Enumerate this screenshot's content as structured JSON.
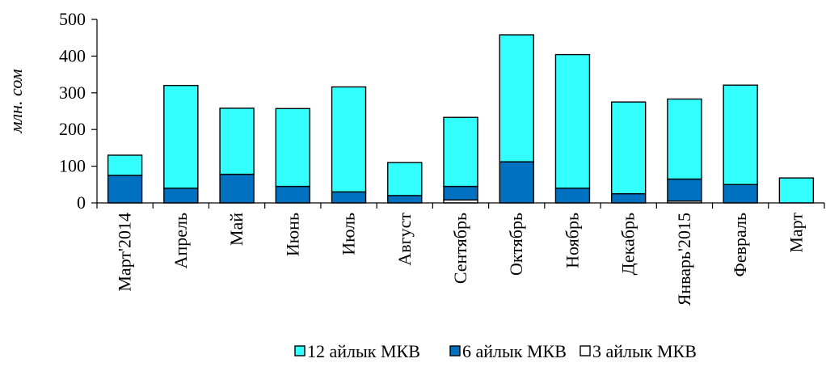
{
  "chart_data": {
    "type": "bar",
    "stacked": true,
    "ylabel": "млн. сом",
    "ylim": [
      0,
      500
    ],
    "yticks": [
      0,
      100,
      200,
      300,
      400,
      500
    ],
    "grid": false,
    "legend_position": "bottom",
    "categories": [
      "Март'2014",
      "Апрель",
      "Май",
      "Июнь",
      "Июль",
      "Август",
      "Сентябрь",
      "Октябрь",
      "Ноябрь",
      "Декабрь",
      "Январь'2015",
      "Февраль",
      "Март"
    ],
    "series": [
      {
        "name": "3 айлык МКВ",
        "color": "#ffffff",
        "values": [
          0,
          0,
          0,
          0,
          0,
          0,
          8,
          0,
          0,
          0,
          5,
          0,
          0
        ]
      },
      {
        "name": "6 айлык МКВ",
        "color": "#0070c0",
        "values": [
          75,
          40,
          78,
          45,
          30,
          20,
          37,
          112,
          40,
          25,
          60,
          50,
          0
        ]
      },
      {
        "name": "12 айлык МКВ",
        "color": "#33ffff",
        "values": [
          55,
          280,
          180,
          212,
          286,
          90,
          188,
          346,
          364,
          250,
          218,
          271,
          68
        ]
      }
    ],
    "legend_order": [
      "12 айлык МКВ",
      "6 айлык МКВ",
      "3 айлык МКВ"
    ]
  }
}
